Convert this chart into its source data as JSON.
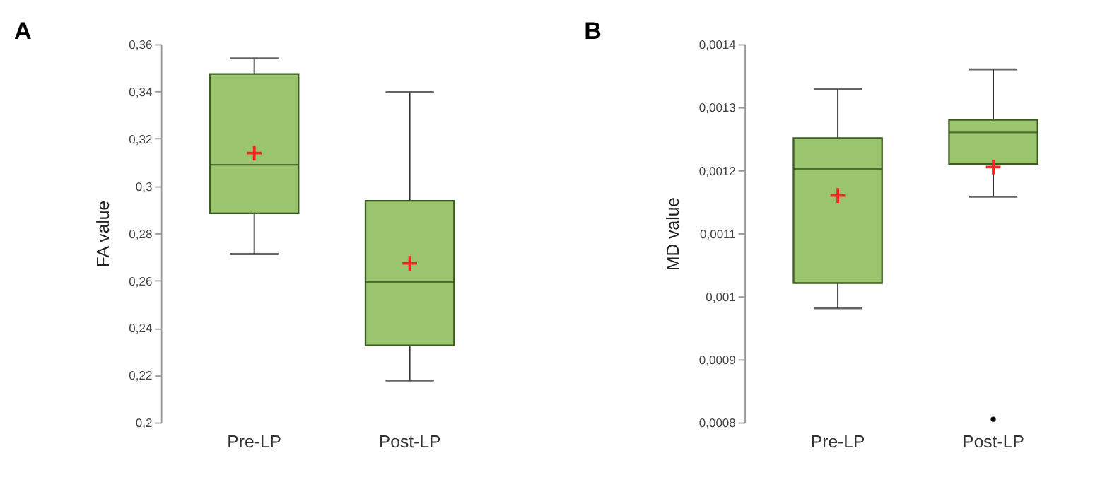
{
  "chart_data": [
    {
      "type": "box",
      "title": "A",
      "ylabel": "FA value",
      "categories": [
        "Pre-LP",
        "Post-LP"
      ],
      "series": [
        {
          "color": "#9bc46e",
          "boxes": [
            {
              "low": 0.2712,
              "q1": 0.2884,
              "median": 0.309,
              "q3": 0.3474,
              "high": 0.354,
              "mean": 0.3139
            },
            {
              "low": 0.2177,
              "q1": 0.2326,
              "median": 0.2594,
              "q3": 0.2937,
              "high": 0.3397,
              "mean": 0.2673
            }
          ]
        }
      ],
      "ylim": [
        0.2,
        0.36
      ],
      "yticks": [
        {
          "value": 0.2,
          "label": "0,2"
        },
        {
          "value": 0.22,
          "label": "0,22"
        },
        {
          "value": 0.24,
          "label": "0,24"
        },
        {
          "value": 0.26,
          "label": "0,26"
        },
        {
          "value": 0.28,
          "label": "0,28"
        },
        {
          "value": 0.3,
          "label": "0,3"
        },
        {
          "value": 0.32,
          "label": "0,32"
        },
        {
          "value": 0.34,
          "label": "0,34"
        },
        {
          "value": 0.36,
          "label": "0,36"
        }
      ]
    },
    {
      "type": "box",
      "title": "B",
      "ylabel": "MD value",
      "categories": [
        "Pre-LP",
        "Post-LP"
      ],
      "series": [
        {
          "color": "#9bc46e",
          "boxes": [
            {
              "low": 0.000981,
              "q1": 0.001021,
              "median": 0.001202,
              "q3": 0.001251,
              "high": 0.001329,
              "mean": 0.00116
            },
            {
              "low": 0.001158,
              "q1": 0.00121,
              "median": 0.00126,
              "q3": 0.00128,
              "high": 0.00136,
              "mean": 0.001205,
              "outliers": [
                0.000805
              ]
            }
          ]
        }
      ],
      "ylim": [
        0.0008,
        0.0014
      ],
      "yticks": [
        {
          "value": 0.0008,
          "label": "0,0008"
        },
        {
          "value": 0.0009,
          "label": "0,0009"
        },
        {
          "value": 0.001,
          "label": "0,001"
        },
        {
          "value": 0.0011,
          "label": "0,0011"
        },
        {
          "value": 0.0012,
          "label": "0,0012"
        },
        {
          "value": 0.0013,
          "label": "0,0013"
        },
        {
          "value": 0.0014,
          "label": "0,0014"
        }
      ]
    }
  ]
}
